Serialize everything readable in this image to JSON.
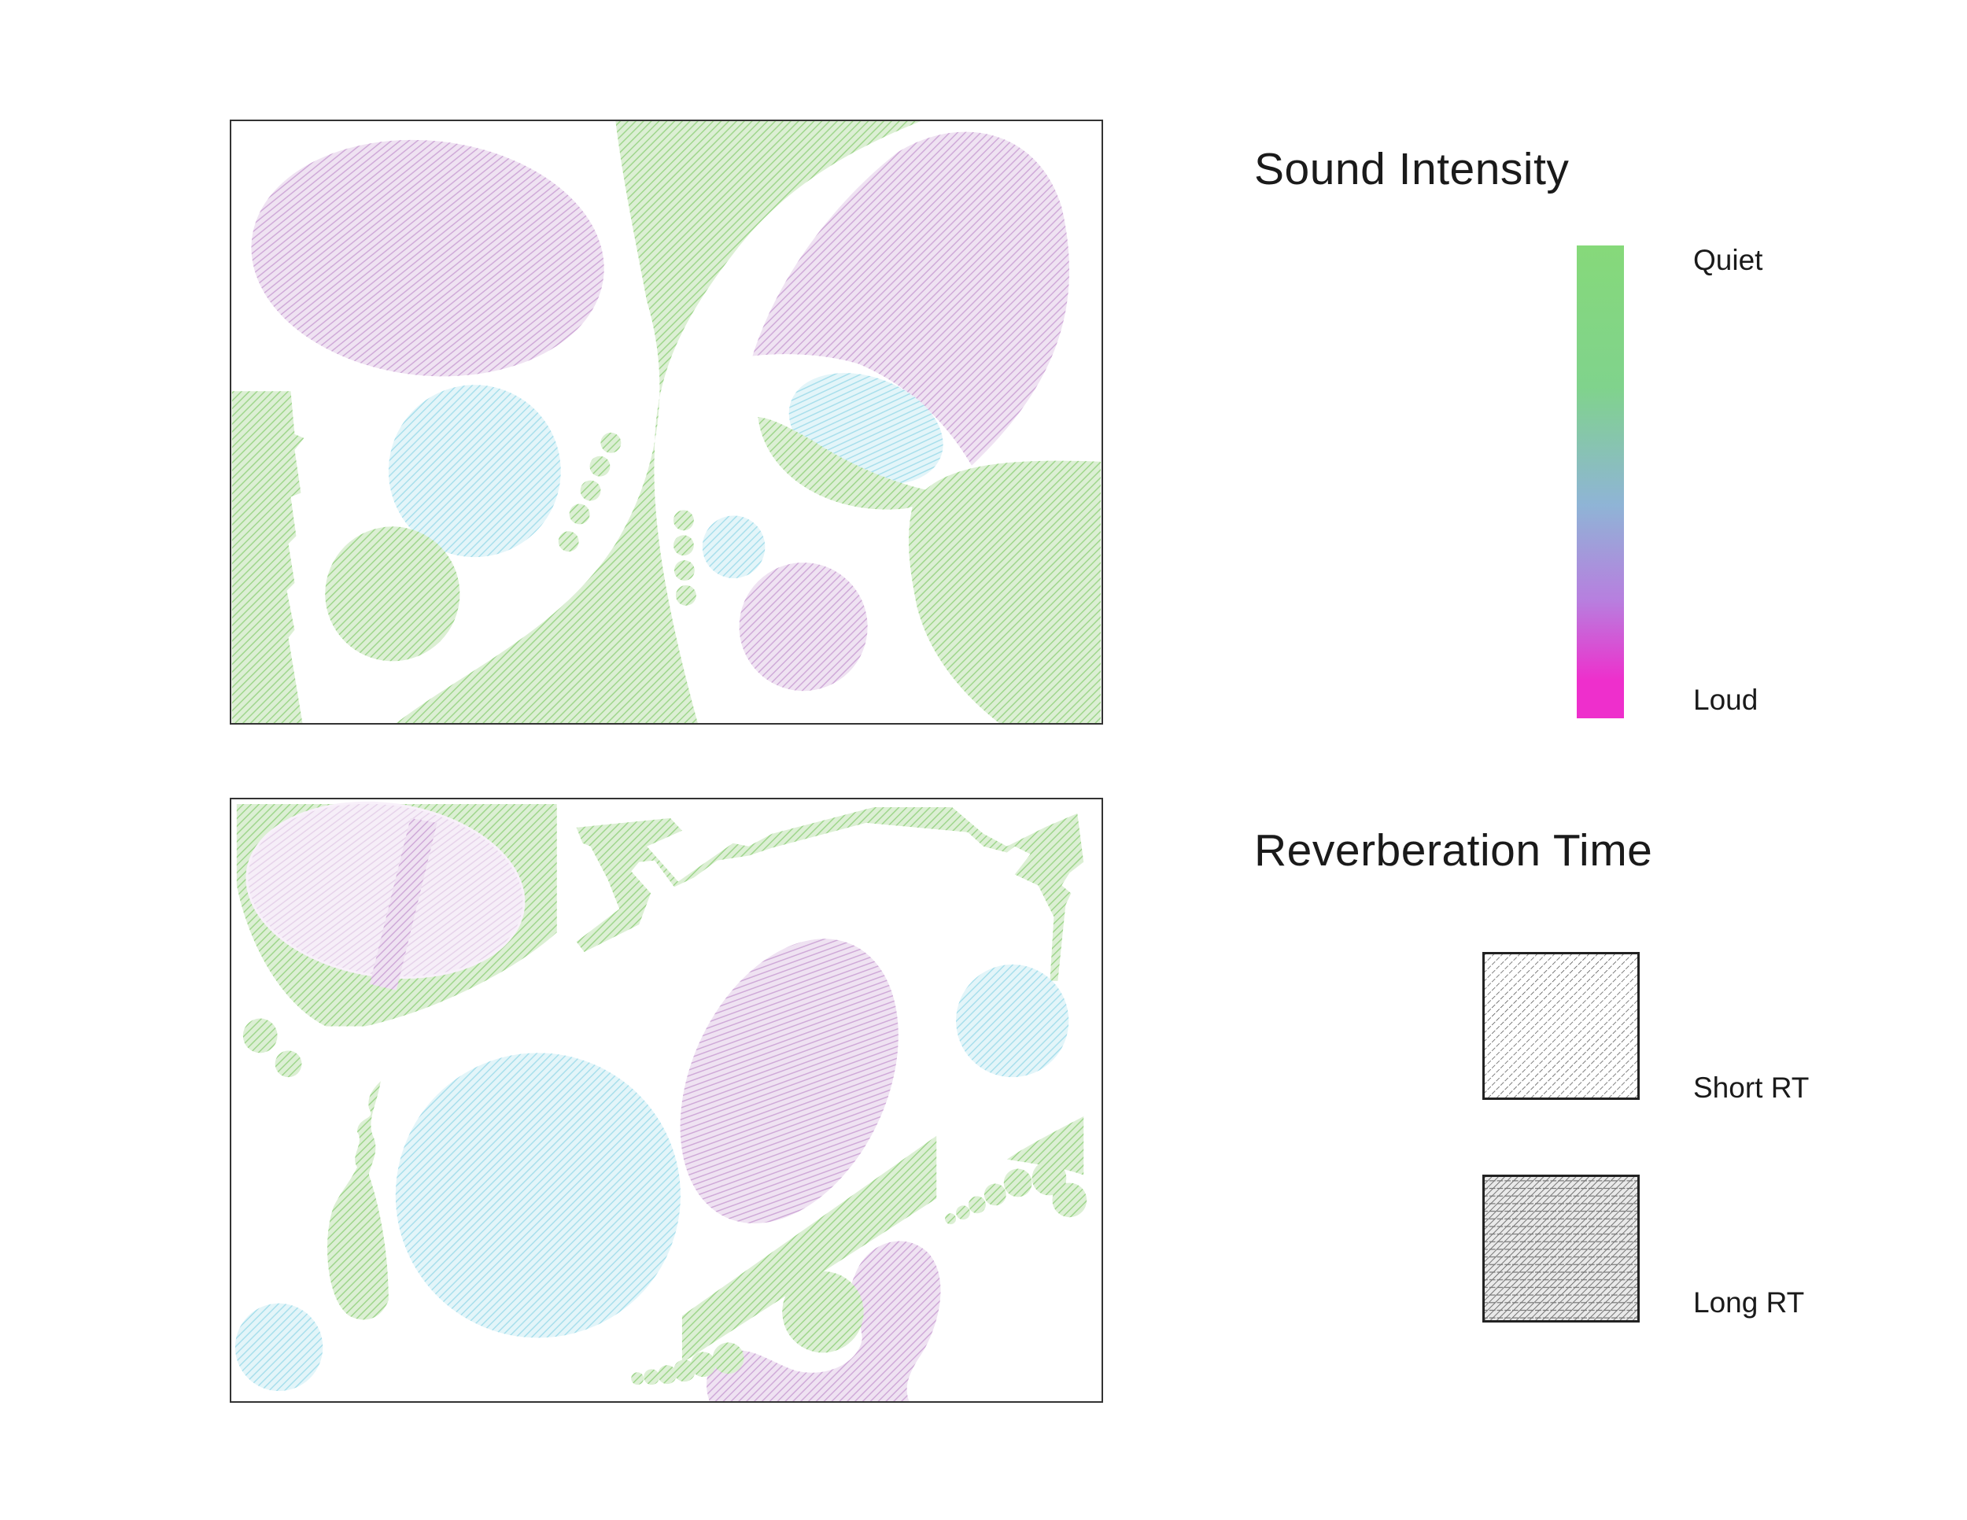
{
  "legend": {
    "intensity_title": "Sound Intensity",
    "quiet_label": "Quiet",
    "loud_label": "Loud",
    "reverb_title": "Reverberation Time",
    "short_rt_label": "Short RT",
    "long_rt_label": "Long RT"
  },
  "colors": {
    "quiet": "#86d97a",
    "mid": "#8fb4d6",
    "loud": "#ee2fcc",
    "zone_green": "#a6d98f",
    "zone_blue": "#9fdbe8",
    "zone_purple": "#c9a2d3",
    "zone_pink": "#e6d0ea"
  }
}
